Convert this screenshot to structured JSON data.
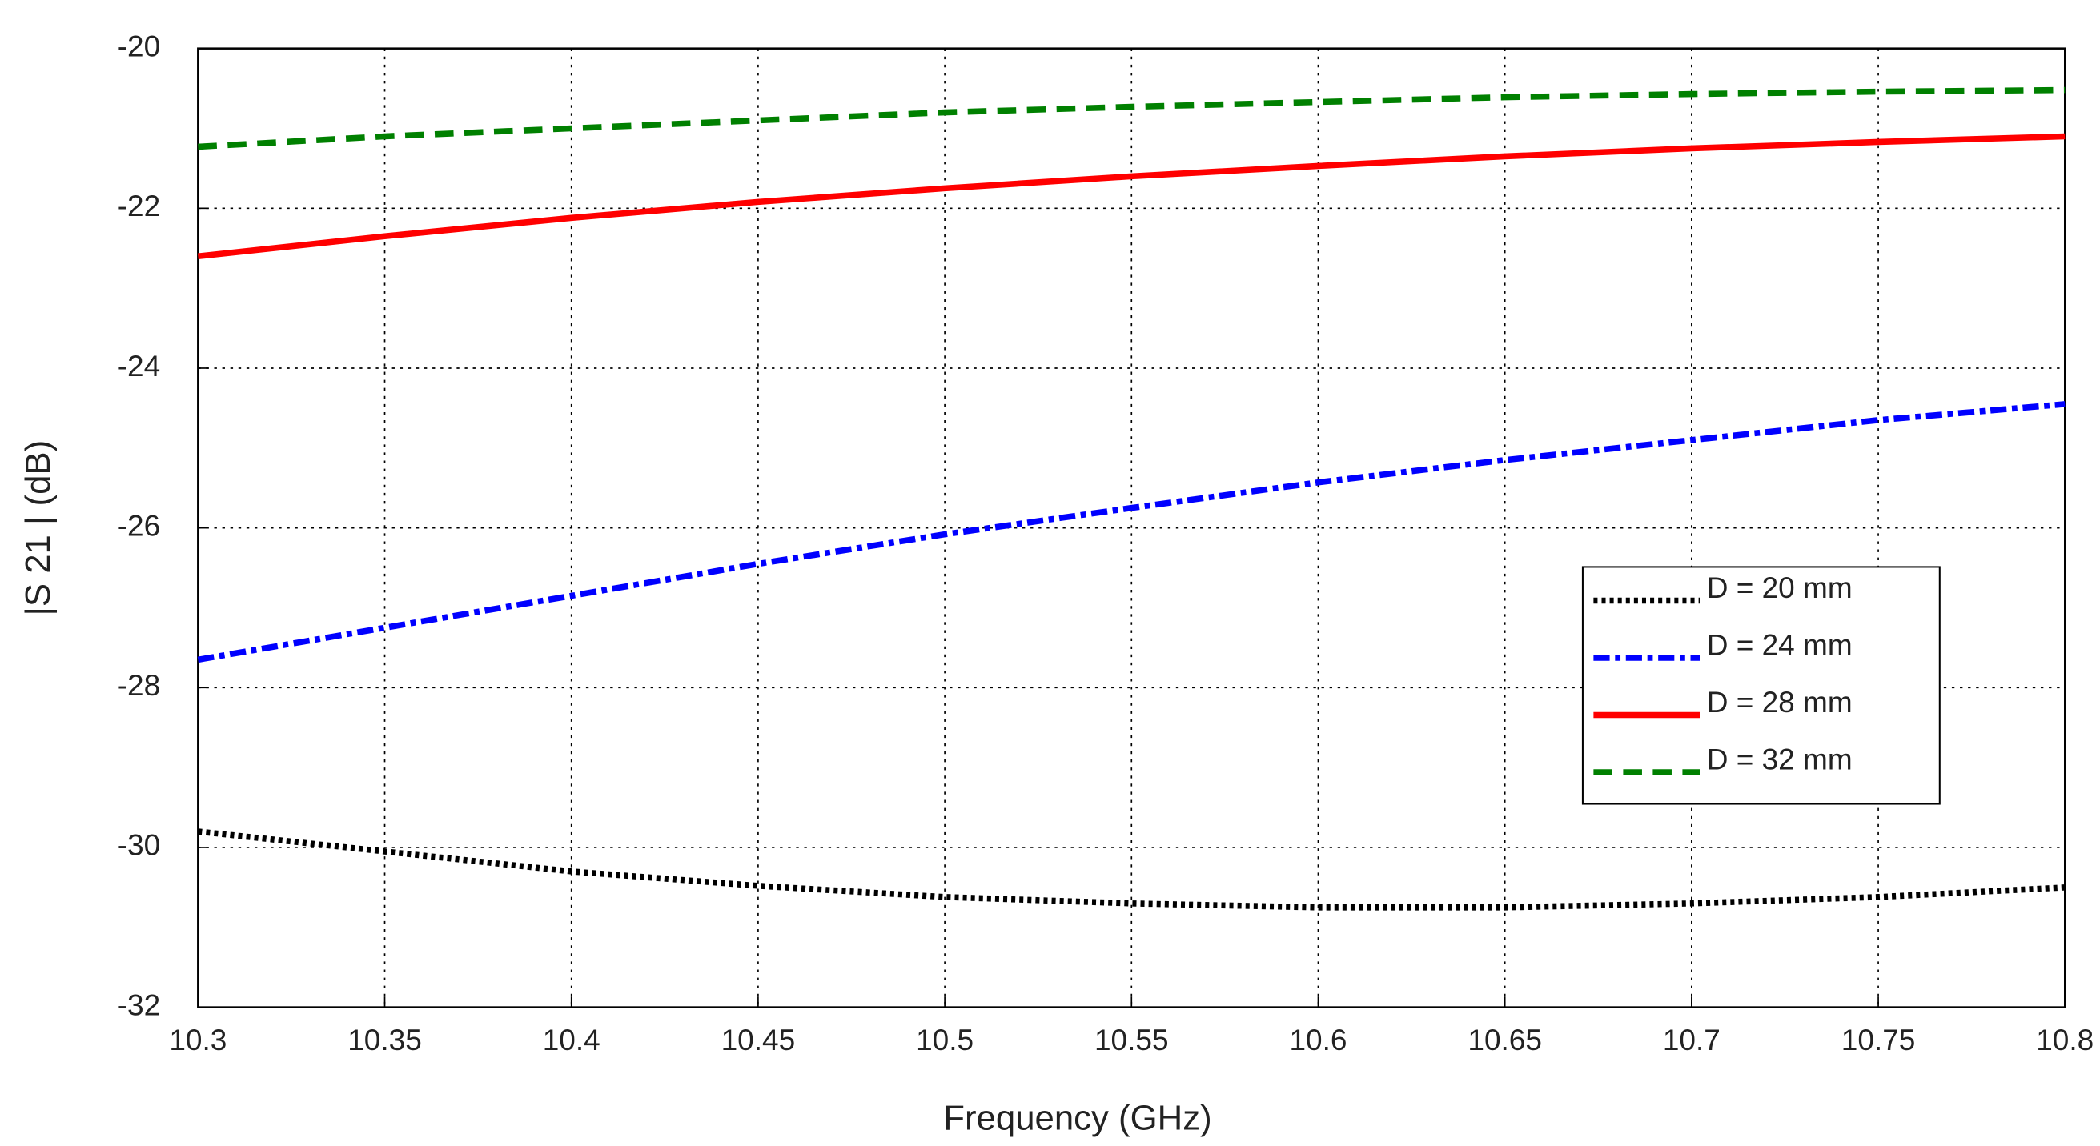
{
  "chart_data": {
    "type": "line",
    "xlabel": "Frequency (GHz)",
    "ylabel": "|S 21 | (dB)",
    "x": [
      10.3,
      10.35,
      10.4,
      10.45,
      10.5,
      10.55,
      10.6,
      10.65,
      10.7,
      10.75,
      10.8
    ],
    "series": [
      {
        "name": "D = 20 mm",
        "color": "#000000",
        "style": "dotted",
        "values": [
          -29.8,
          -30.05,
          -30.3,
          -30.48,
          -30.62,
          -30.7,
          -30.75,
          -30.75,
          -30.7,
          -30.62,
          -30.5
        ]
      },
      {
        "name": "D = 24 mm",
        "color": "#0000ff",
        "style": "dashdot",
        "values": [
          -27.65,
          -27.25,
          -26.85,
          -26.45,
          -26.08,
          -25.75,
          -25.43,
          -25.15,
          -24.9,
          -24.65,
          -24.45
        ]
      },
      {
        "name": "D = 28 mm",
        "color": "#ff0000",
        "style": "solid",
        "values": [
          -22.6,
          -22.35,
          -22.12,
          -21.92,
          -21.75,
          -21.6,
          -21.47,
          -21.35,
          -21.25,
          -21.17,
          -21.1
        ]
      },
      {
        "name": "D = 32 mm",
        "color": "#008000",
        "style": "dashed",
        "values": [
          -21.23,
          -21.1,
          -21.0,
          -20.9,
          -20.8,
          -20.73,
          -20.67,
          -20.61,
          -20.57,
          -20.54,
          -20.52
        ]
      }
    ],
    "xlim": [
      10.3,
      10.8
    ],
    "xticks": [
      10.3,
      10.35,
      10.4,
      10.45,
      10.5,
      10.55,
      10.6,
      10.65,
      10.7,
      10.75,
      10.8
    ],
    "ylim": [
      -32,
      -20
    ],
    "yticks": [
      -32,
      -30,
      -28,
      -26,
      -24,
      -22,
      -20
    ],
    "grid": true,
    "legend": "right"
  }
}
